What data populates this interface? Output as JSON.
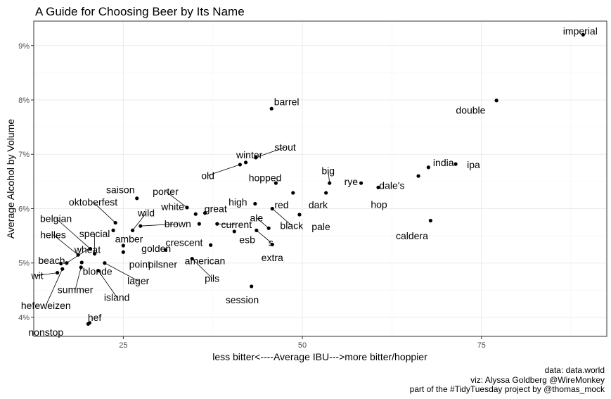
{
  "chart_data": {
    "type": "scatter",
    "title": "A Guide for Choosing Beer by Its Name",
    "xlabel": "less bitter<----Average IBU--->more bitter/hoppier",
    "ylabel": "Average Alcohol by Volume",
    "xlim": [
      12.5,
      92.5
    ],
    "ylim": [
      3.65,
      9.45
    ],
    "xticks": [
      25,
      50,
      75
    ],
    "xtick_labels": [
      "25",
      "50",
      "75"
    ],
    "yticks": [
      4,
      5,
      6,
      7,
      8,
      9
    ],
    "ytick_labels": [
      "4%",
      "5%",
      "6%",
      "7%",
      "8%",
      "9%"
    ],
    "grid": true,
    "theme": "bw",
    "caption": [
      "data: data.world",
      "viz: Alyssa Goldberg @WireMonkey",
      "part of the #TidyTuesday project by @thomas_mock"
    ],
    "points": [
      {
        "label": "imperial",
        "x": 89.2,
        "y": 9.2,
        "lx": 88.8,
        "ly": 9.27,
        "anchor": "middle"
      },
      {
        "label": "double",
        "x": 77.1,
        "y": 7.99,
        "lx": 73.5,
        "ly": 7.81,
        "anchor": "middle"
      },
      {
        "label": "barrel",
        "x": 45.7,
        "y": 7.84,
        "lx": 47.8,
        "ly": 7.97,
        "anchor": "middle"
      },
      {
        "label": "india",
        "x": 67.6,
        "y": 6.76,
        "lx": 69.7,
        "ly": 6.85,
        "anchor": "middle"
      },
      {
        "label": "ipa",
        "x": 71.4,
        "y": 6.82,
        "lx": 73.9,
        "ly": 6.81,
        "anchor": "middle"
      },
      {
        "label": "dale's",
        "x": 66.2,
        "y": 6.6,
        "lx": 62.5,
        "ly": 6.43,
        "anchor": "middle"
      },
      {
        "label": "stout",
        "x": 43.5,
        "y": 6.94,
        "lx": 47.6,
        "ly": 7.13,
        "anchor": "middle",
        "leader": true
      },
      {
        "label": "winter",
        "x": 42.1,
        "y": 6.85,
        "lx": 42.6,
        "ly": 6.99,
        "anchor": "middle"
      },
      {
        "label": "old",
        "x": 41.3,
        "y": 6.81,
        "lx": 36.8,
        "ly": 6.61,
        "anchor": "middle",
        "leader": true
      },
      {
        "label": "hopped",
        "x": 46.3,
        "y": 6.47,
        "lx": 44.8,
        "ly": 6.57,
        "anchor": "middle"
      },
      {
        "label": "big",
        "x": 53.8,
        "y": 6.47,
        "lx": 53.6,
        "ly": 6.7,
        "anchor": "middle",
        "leader": true
      },
      {
        "label": "rye",
        "x": 58.2,
        "y": 6.47,
        "lx": 56.8,
        "ly": 6.5,
        "anchor": "middle"
      },
      {
        "label": "hop",
        "x": 60.6,
        "y": 6.39,
        "lx": 60.7,
        "ly": 6.08,
        "anchor": "middle"
      },
      {
        "label": "caldera",
        "x": 67.9,
        "y": 5.78,
        "lx": 65.3,
        "ly": 5.5,
        "anchor": "middle"
      },
      {
        "label": "red",
        "x": 48.7,
        "y": 6.29,
        "lx": 47.1,
        "ly": 6.07,
        "anchor": "middle"
      },
      {
        "label": "dark",
        "x": 53.3,
        "y": 6.29,
        "lx": 52.2,
        "ly": 6.07,
        "anchor": "middle"
      },
      {
        "label": "high",
        "x": 43.4,
        "y": 6.09,
        "lx": 41.0,
        "ly": 6.12,
        "anchor": "middle"
      },
      {
        "label": "black",
        "x": 45.8,
        "y": 6.0,
        "lx": 48.5,
        "ly": 5.69,
        "anchor": "middle",
        "leader": true
      },
      {
        "label": "pale",
        "x": 49.6,
        "y": 5.89,
        "lx": 52.6,
        "ly": 5.67,
        "anchor": "middle"
      },
      {
        "label": "ale",
        "x": 45.3,
        "y": 5.64,
        "lx": 43.6,
        "ly": 5.83,
        "anchor": "middle",
        "leader": true
      },
      {
        "label": "esb",
        "x": 40.5,
        "y": 5.58,
        "lx": 42.3,
        "ly": 5.43,
        "anchor": "middle"
      },
      {
        "label": "s",
        "x": 43.6,
        "y": 5.6,
        "lx": 45.6,
        "ly": 5.38,
        "anchor": "middle",
        "leader": true
      },
      {
        "label": "extra",
        "x": 45.8,
        "y": 5.34,
        "lx": 45.8,
        "ly": 5.1,
        "anchor": "middle"
      },
      {
        "label": "saison",
        "x": 26.9,
        "y": 6.19,
        "lx": 24.6,
        "ly": 6.35,
        "anchor": "middle"
      },
      {
        "label": "porter",
        "x": 33.9,
        "y": 6.02,
        "lx": 30.9,
        "ly": 6.32,
        "anchor": "middle",
        "leader": true
      },
      {
        "label": "white",
        "x": 35.1,
        "y": 5.9,
        "lx": 31.9,
        "ly": 6.04,
        "anchor": "middle"
      },
      {
        "label": "great",
        "x": 36.4,
        "y": 5.92,
        "lx": 37.9,
        "ly": 6.0,
        "anchor": "middle"
      },
      {
        "label": "current",
        "x": 38.1,
        "y": 5.72,
        "lx": 40.8,
        "ly": 5.71,
        "anchor": "middle",
        "leader": true
      },
      {
        "label": "crescent",
        "x": 35.6,
        "y": 5.72,
        "lx": 33.5,
        "ly": 5.38,
        "anchor": "middle"
      },
      {
        "label": "oktoberfest",
        "x": 23.9,
        "y": 5.74,
        "lx": 20.8,
        "ly": 6.12,
        "anchor": "middle",
        "leader": true
      },
      {
        "label": "wild",
        "x": 26.3,
        "y": 5.6,
        "lx": 28.2,
        "ly": 5.92,
        "anchor": "middle",
        "leader": true
      },
      {
        "label": "brown",
        "x": 27.4,
        "y": 5.68,
        "lx": 32.6,
        "ly": 5.72,
        "anchor": "middle",
        "leader": true
      },
      {
        "label": "amber",
        "x": 23.6,
        "y": 5.6,
        "lx": 25.8,
        "ly": 5.44,
        "anchor": "middle"
      },
      {
        "label": "belgian",
        "x": 20.4,
        "y": 5.26,
        "lx": 15.6,
        "ly": 5.82,
        "anchor": "middle",
        "leader": true
      },
      {
        "label": "special",
        "x": 21.0,
        "y": 5.17,
        "lx": 21.0,
        "ly": 5.54,
        "anchor": "middle",
        "leader": true
      },
      {
        "label": "helles",
        "x": 18.7,
        "y": 5.15,
        "lx": 15.2,
        "ly": 5.52,
        "anchor": "middle",
        "leader": true
      },
      {
        "label": "wheat",
        "x": 17.1,
        "y": 5.0,
        "lx": 20.0,
        "ly": 5.25,
        "anchor": "middle",
        "leader": true
      },
      {
        "label": "golden",
        "x": 25.0,
        "y": 5.32,
        "lx": 29.6,
        "ly": 5.27,
        "anchor": "middle"
      },
      {
        "label": "point",
        "x": 25.0,
        "y": 5.2,
        "lx": 27.3,
        "ly": 4.98,
        "anchor": "middle"
      },
      {
        "label": "pilsner",
        "x": 30.9,
        "y": 5.24,
        "lx": 30.5,
        "ly": 4.98,
        "anchor": "middle"
      },
      {
        "label": "american",
        "x": 37.2,
        "y": 5.33,
        "lx": 36.4,
        "ly": 5.04,
        "anchor": "middle"
      },
      {
        "label": "beach",
        "x": 16.3,
        "y": 4.99,
        "lx": 15.0,
        "ly": 5.05,
        "anchor": "middle"
      },
      {
        "label": "blonde",
        "x": 19.2,
        "y": 5.01,
        "lx": 21.4,
        "ly": 4.85,
        "anchor": "middle"
      },
      {
        "label": "wit",
        "x": 15.8,
        "y": 4.82,
        "lx": 13.0,
        "ly": 4.77,
        "anchor": "middle",
        "leader": true
      },
      {
        "label": "summer",
        "x": 19.1,
        "y": 4.92,
        "lx": 18.3,
        "ly": 4.51,
        "anchor": "middle",
        "leader": true
      },
      {
        "label": "lager",
        "x": 22.4,
        "y": 5.0,
        "lx": 27.1,
        "ly": 4.67,
        "anchor": "middle",
        "leader": true
      },
      {
        "label": "island",
        "x": 21.5,
        "y": 4.86,
        "lx": 24.1,
        "ly": 4.37,
        "anchor": "middle",
        "leader": true
      },
      {
        "label": "hefeweizen",
        "x": 16.5,
        "y": 4.89,
        "lx": 14.2,
        "ly": 4.22,
        "anchor": "middle",
        "leader": true
      },
      {
        "label": "pils",
        "x": 34.6,
        "y": 5.08,
        "lx": 37.4,
        "ly": 4.72,
        "anchor": "middle",
        "leader": true
      },
      {
        "label": "session",
        "x": 42.9,
        "y": 4.57,
        "lx": 41.6,
        "ly": 4.32,
        "anchor": "middle"
      },
      {
        "label": "hef",
        "x": 20.3,
        "y": 3.9,
        "lx": 21.0,
        "ly": 4.0,
        "anchor": "middle"
      },
      {
        "label": "nonstop",
        "x": 20.1,
        "y": 3.88,
        "lx": 14.2,
        "ly": 3.73,
        "anchor": "middle"
      }
    ]
  }
}
